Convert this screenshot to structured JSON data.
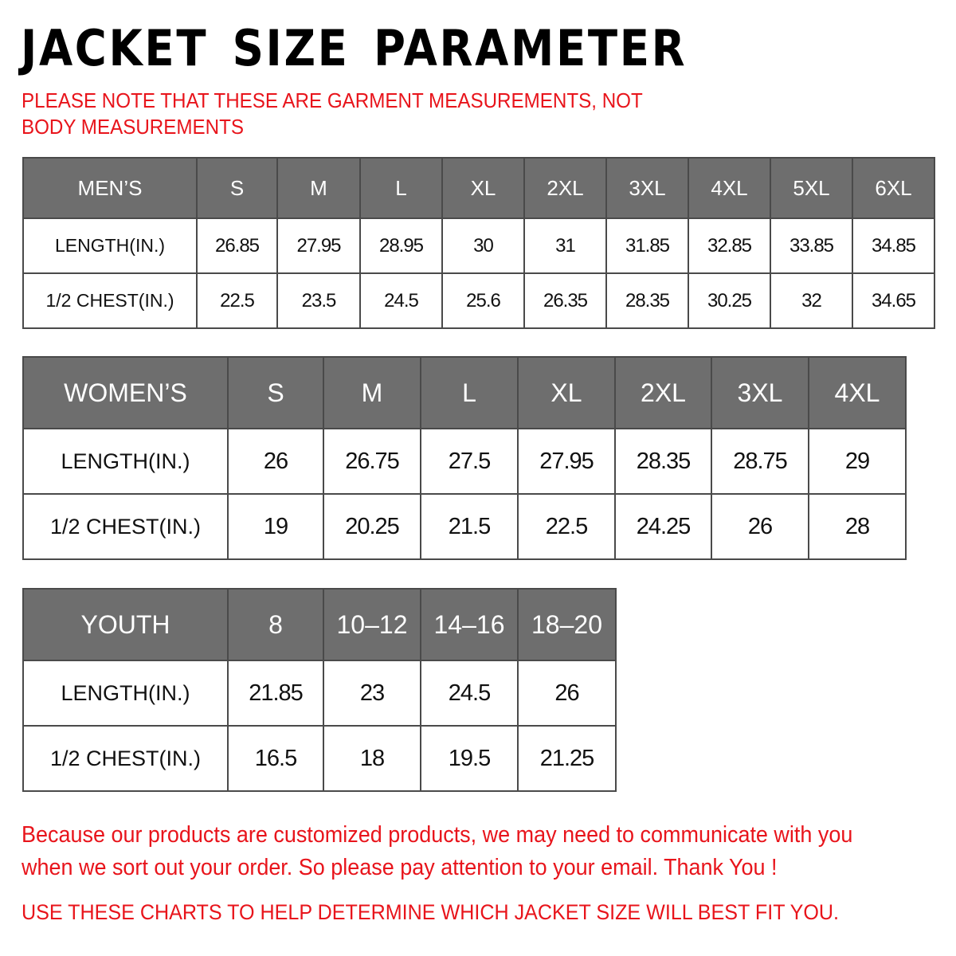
{
  "title": "JACKET  SIZE  PARAMETER",
  "note": "PLEASE NOTE THAT THESE ARE GARMENT MEASUREMENTS, NOT BODY MEASUREMENTS",
  "tables": {
    "men": {
      "header": [
        "MEN’S",
        "S",
        "M",
        "L",
        "XL",
        "2XL",
        "3XL",
        "4XL",
        "5XL",
        "6XL"
      ],
      "rows": [
        [
          "LENGTH(IN.)",
          "26.85",
          "27.95",
          "28.95",
          "30",
          "31",
          "31.85",
          "32.85",
          "33.85",
          "34.85"
        ],
        [
          "1/2 CHEST(IN.)",
          "22.5",
          "23.5",
          "24.5",
          "25.6",
          "26.35",
          "28.35",
          "30.25",
          "32",
          "34.65"
        ]
      ]
    },
    "women": {
      "header": [
        "WOMEN’S",
        "S",
        "M",
        "L",
        "XL",
        "2XL",
        "3XL",
        "4XL"
      ],
      "rows": [
        [
          "LENGTH(IN.)",
          "26",
          "26.75",
          "27.5",
          "27.95",
          "28.35",
          "28.75",
          "29"
        ],
        [
          "1/2 CHEST(IN.)",
          "19",
          "20.25",
          "21.5",
          "22.5",
          "24.25",
          "26",
          "28"
        ]
      ]
    },
    "youth": {
      "header": [
        "YOUTH",
        "8",
        "10–12",
        "14–16",
        "18–20"
      ],
      "rows": [
        [
          "LENGTH(IN.)",
          "21.85",
          "23",
          "24.5",
          "26"
        ],
        [
          "1/2 CHEST(IN.)",
          "16.5",
          "18",
          "19.5",
          "21.25"
        ]
      ]
    }
  },
  "footer": "Because our products are customized products, we may need to communicate with you when we sort out your order. So please pay attention to your email. Thank You !",
  "footer_note": "USE THESE CHARTS TO HELP DETERMINE WHICH JACKET SIZE WILL BEST FIT YOU.",
  "colors": {
    "header_bg": "#6e6e6e",
    "accent_red": "#e8141b"
  }
}
